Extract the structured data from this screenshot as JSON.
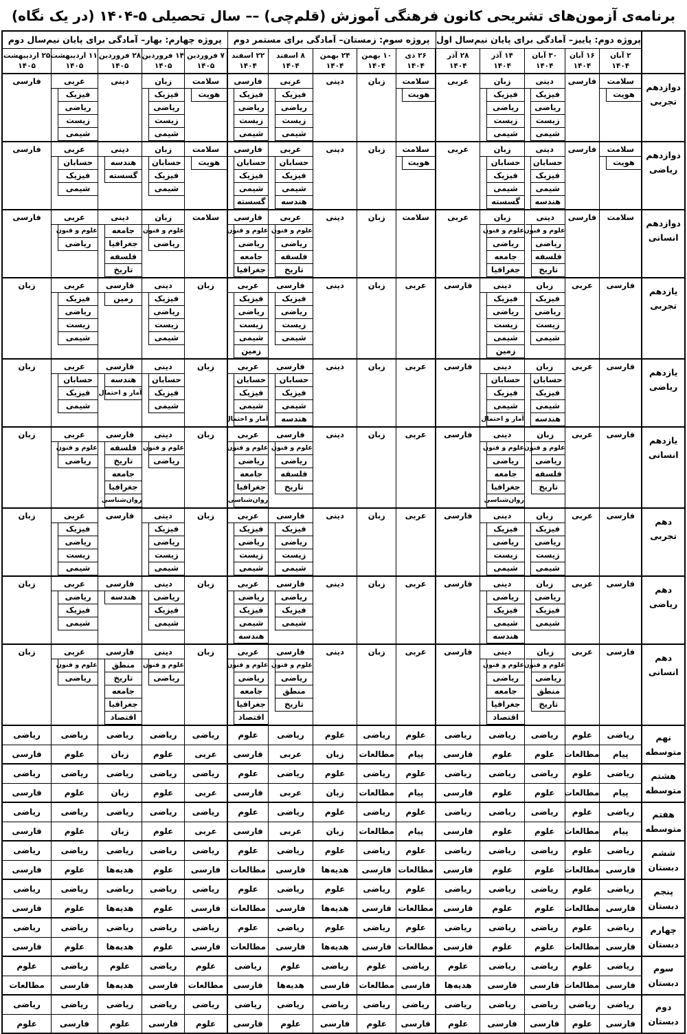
{
  "title": "برنامه‌ی آزمون‌های تشریحی کانون فرهنگی آموزش (قلم‌چی) –– سال تحصیلی ۵-۱۴۰۴ (در یک نگاه)",
  "colors": {
    "background": "#ffffff",
    "text": "#000000",
    "border": "#000000"
  },
  "projects": [
    {
      "label": "پروژه دوم: پاییز– آمادگی برای پایان نیم‌سال اول",
      "span": 5
    },
    {
      "label": "پروژه سوم: زمستان– آمادگی برای مستمر دوم",
      "span": 5
    },
    {
      "label": "پروژه چهارم: بهار– آمادگی برای پایان نیم‌سال دوم",
      "span": 5
    }
  ],
  "dates": [
    {
      "day": "۲ آبان",
      "year": "۱۴۰۴"
    },
    {
      "day": "۱۶ آبان",
      "year": "۱۴۰۴"
    },
    {
      "day": "۳۰ آبان",
      "year": "۱۴۰۴"
    },
    {
      "day": "۱۴ آذر",
      "year": "۱۴۰۴"
    },
    {
      "day": "۲۸ آذر",
      "year": "۱۴۰۴"
    },
    {
      "day": "۲۶ دی",
      "year": "۱۴۰۴"
    },
    {
      "day": "۱۰ بهمن",
      "year": "۱۴۰۴"
    },
    {
      "day": "۲۴ بهمن",
      "year": "۱۴۰۴"
    },
    {
      "day": "۸ اسفند",
      "year": "۱۴۰۴"
    },
    {
      "day": "۲۲ اسفند",
      "year": "۱۴۰۴"
    },
    {
      "day": "۷ فروردین",
      "year": "۱۴۰۵"
    },
    {
      "day": "۱۴ فروردین",
      "year": "۱۴۰۵"
    },
    {
      "day": "۲۸ فروردین",
      "year": "۱۴۰۵"
    },
    {
      "day": "۱۱ اردیبهشت",
      "year": "۱۴۰۵"
    },
    {
      "day": "۲۵ اردیبهشت",
      "year": "۱۴۰۵"
    }
  ],
  "grades": [
    {
      "line1": "دوازدهم",
      "line2": "تجربی",
      "style": "boxed",
      "cells": [
        [
          "سلامت",
          "هویت"
        ],
        [
          "فارسی"
        ],
        [
          "دینی",
          "فیزیک",
          "ریاضی",
          "زیست",
          "شیمی"
        ],
        [
          "زبان",
          "فیزیک",
          "ریاضی",
          "زیست",
          "شیمی"
        ],
        [
          "عربی"
        ],
        [
          "سلامت",
          "هویت"
        ],
        [
          "زبان"
        ],
        [
          "دینی"
        ],
        [
          "عربی",
          "فیزیک",
          "ریاضی",
          "زیست",
          "شیمی"
        ],
        [
          "فارسی",
          "فیزیک",
          "ریاضی",
          "زیست",
          "شیمی"
        ],
        [
          "سلامت",
          "هویت"
        ],
        [
          "زبان",
          "فیزیک",
          "ریاضی",
          "زیست",
          "شیمی"
        ],
        [
          "دینی"
        ],
        [
          "عربی",
          "فیزیک",
          "ریاضی",
          "زیست",
          "شیمی"
        ],
        [
          "فارسی"
        ]
      ]
    },
    {
      "line1": "دوازدهم",
      "line2": "ریاضی",
      "style": "boxed",
      "cells": [
        [
          "سلامت",
          "هویت"
        ],
        [
          "فارسی"
        ],
        [
          "دینی",
          "حسابان",
          "فیزیک",
          "شیمی",
          "هندسه"
        ],
        [
          "زبان",
          "حسابان",
          "فیزیک",
          "شیمی",
          "گسسته"
        ],
        [
          "عربی"
        ],
        [
          "سلامت",
          "هویت"
        ],
        [
          "زبان"
        ],
        [
          "دینی"
        ],
        [
          "عربی",
          "حسابان",
          "فیزیک",
          "شیمی",
          "هندسه"
        ],
        [
          "فارسی",
          "حسابان",
          "فیزیک",
          "شیمی",
          "گسسته"
        ],
        [
          "سلامت",
          "هویت"
        ],
        [
          "زبان",
          "حسابان",
          "فیزیک",
          "شیمی"
        ],
        [
          "دینی",
          "هندسه",
          "گسسته"
        ],
        [
          "عربی",
          "حسابان",
          "فیزیک",
          "شیمی"
        ],
        [
          "فارسی"
        ]
      ]
    },
    {
      "line1": "دوازدهم",
      "line2": "انسانی",
      "style": "boxed",
      "cells": [
        [
          "سلامت"
        ],
        [
          "فارسی"
        ],
        [
          "دینی",
          "علوم و فنون",
          "ریاضی",
          "فلسفه",
          "تاریخ"
        ],
        [
          "زبان",
          "علوم و فنون",
          "ریاضی",
          "جامعه",
          "جغرافیا"
        ],
        [
          "عربی"
        ],
        [
          "سلامت"
        ],
        [
          "زبان"
        ],
        [
          "دینی"
        ],
        [
          "عربی",
          "علوم و فنون",
          "ریاضی",
          "فلسفه",
          "تاریخ"
        ],
        [
          "فارسی",
          "علوم و فنون",
          "ریاضی",
          "جامعه",
          "جغرافیا"
        ],
        [
          "سلامت"
        ],
        [
          "زبان",
          "علوم و فنون",
          "ریاضی"
        ],
        [
          "دینی",
          "جامعه",
          "جغرافیا",
          "فلسفه",
          "تاریخ"
        ],
        [
          "عربی",
          "علوم و فنون",
          "ریاضی"
        ],
        [
          "فارسی"
        ]
      ]
    },
    {
      "line1": "یازدهم",
      "line2": "تجربی",
      "style": "boxed",
      "cells": [
        [
          "فارسی"
        ],
        [
          "عربی"
        ],
        [
          "زبان",
          "فیزیک",
          "ریاضی",
          "زیست",
          "شیمی"
        ],
        [
          "دینی",
          "فیزیک",
          "ریاضی",
          "زیست",
          "شیمی",
          "زمین"
        ],
        [
          "فارسی"
        ],
        [
          "عربی"
        ],
        [
          "زبان"
        ],
        [
          "دینی"
        ],
        [
          "فارسی",
          "فیزیک",
          "ریاضی",
          "زیست",
          "شیمی"
        ],
        [
          "عربی",
          "فیزیک",
          "ریاضی",
          "زیست",
          "شیمی",
          "زمین"
        ],
        [
          "زبان"
        ],
        [
          "دینی",
          "فیزیک",
          "ریاضی",
          "زیست",
          "شیمی"
        ],
        [
          "فارسی",
          "زمین"
        ],
        [
          "عربی",
          "فیزیک",
          "ریاضی",
          "زیست",
          "شیمی"
        ],
        [
          "زبان"
        ]
      ]
    },
    {
      "line1": "یازدهم",
      "line2": "ریاضی",
      "style": "boxed",
      "cells": [
        [
          "فارسی"
        ],
        [
          "عربی"
        ],
        [
          "زبان",
          "حسابان",
          "فیزیک",
          "شیمی",
          "هندسه"
        ],
        [
          "دینی",
          "حسابان",
          "فیزیک",
          "شیمی",
          "آمار و احتمال"
        ],
        [
          "فارسی"
        ],
        [
          "عربی"
        ],
        [
          "زبان"
        ],
        [
          "دینی"
        ],
        [
          "فارسی",
          "حسابان",
          "فیزیک",
          "شیمی",
          "هندسه"
        ],
        [
          "عربی",
          "حسابان",
          "فیزیک",
          "شیمی",
          "آمار و احتمال"
        ],
        [
          "زبان"
        ],
        [
          "دینی",
          "حسابان",
          "فیزیک",
          "شیمی"
        ],
        [
          "فارسی",
          "هندسه",
          "آمار و احتمال"
        ],
        [
          "عربی",
          "حسابان",
          "فیزیک",
          "شیمی"
        ],
        [
          "زبان"
        ]
      ]
    },
    {
      "line1": "یازدهم",
      "line2": "انسانی",
      "style": "boxed",
      "cells": [
        [
          "فارسی"
        ],
        [
          "عربی"
        ],
        [
          "زبان",
          "علوم و فنون",
          "ریاضی",
          "فلسفه",
          "تاریخ"
        ],
        [
          "دینی",
          "علوم و فنون",
          "ریاضی",
          "جامعه",
          "جغرافیا",
          "روان‌شناسی"
        ],
        [
          "فارسی"
        ],
        [
          "عربی"
        ],
        [
          "زبان"
        ],
        [
          "دینی"
        ],
        [
          "فارسی",
          "علوم و فنون",
          "ریاضی",
          "فلسفه",
          "تاریخ"
        ],
        [
          "عربی",
          "علوم و فنون",
          "ریاضی",
          "جامعه",
          "جغرافیا",
          "روان‌شناسی"
        ],
        [
          "زبان"
        ],
        [
          "دینی",
          "علوم و فنون",
          "ریاضی"
        ],
        [
          "فارسی",
          "فلسفه",
          "تاریخ",
          "جامعه",
          "جغرافیا",
          "روان‌شناسی"
        ],
        [
          "عربی",
          "علوم و فنون",
          "ریاضی"
        ],
        [
          "زبان"
        ]
      ]
    },
    {
      "line1": "دهم",
      "line2": "تجربی",
      "style": "boxed",
      "cells": [
        [
          "فارسی"
        ],
        [
          "عربی"
        ],
        [
          "زبان",
          "فیزیک",
          "ریاضی",
          "زیست",
          "شیمی"
        ],
        [
          "دینی",
          "فیزیک",
          "ریاضی",
          "زیست",
          "شیمی"
        ],
        [
          "فارسی"
        ],
        [
          "عربی"
        ],
        [
          "زبان"
        ],
        [
          "دینی"
        ],
        [
          "فارسی",
          "فیزیک",
          "ریاضی",
          "زیست",
          "شیمی"
        ],
        [
          "عربی",
          "فیزیک",
          "ریاضی",
          "زیست",
          "شیمی"
        ],
        [
          "زبان"
        ],
        [
          "دینی",
          "فیزیک",
          "ریاضی",
          "زیست",
          "شیمی"
        ],
        [
          "فارسی"
        ],
        [
          "عربی",
          "فیزیک",
          "ریاضی",
          "زیست",
          "شیمی"
        ],
        [
          "زبان"
        ]
      ]
    },
    {
      "line1": "دهم",
      "line2": "ریاضی",
      "style": "boxed",
      "cells": [
        [
          "فارسی"
        ],
        [
          "عربی"
        ],
        [
          "زبان",
          "ریاضی",
          "فیزیک",
          "شیمی"
        ],
        [
          "دینی",
          "ریاضی",
          "فیزیک",
          "شیمی",
          "هندسه"
        ],
        [
          "فارسی"
        ],
        [
          "عربی"
        ],
        [
          "زبان"
        ],
        [
          "دینی"
        ],
        [
          "فارسی",
          "ریاضی",
          "فیزیک",
          "شیمی"
        ],
        [
          "عربی",
          "ریاضی",
          "فیزیک",
          "شیمی",
          "هندسه"
        ],
        [
          "زبان"
        ],
        [
          "دینی",
          "ریاضی",
          "فیزیک",
          "شیمی"
        ],
        [
          "فارسی",
          "هندسه"
        ],
        [
          "عربی",
          "ریاضی",
          "فیزیک",
          "شیمی"
        ],
        [
          "زبان"
        ]
      ]
    },
    {
      "line1": "دهم",
      "line2": "انسانی",
      "style": "boxed",
      "cells": [
        [
          "فارسی"
        ],
        [
          "عربی"
        ],
        [
          "زبان",
          "علوم و فنون",
          "ریاضی",
          "منطق",
          "تاریخ"
        ],
        [
          "دینی",
          "علوم و فنون",
          "ریاضی",
          "جامعه",
          "جغرافیا",
          "اقتصاد"
        ],
        [
          "فارسی"
        ],
        [
          "عربی"
        ],
        [
          "زبان"
        ],
        [
          "دینی"
        ],
        [
          "فارسی",
          "علوم و فنون",
          "ریاضی",
          "منطق",
          "تاریخ"
        ],
        [
          "عربی",
          "علوم و فنون",
          "ریاضی",
          "جامعه",
          "جغرافیا",
          "اقتصاد"
        ],
        [
          "زبان"
        ],
        [
          "دینی",
          "علوم و فنون",
          "ریاضی"
        ],
        [
          "فارسی",
          "منطق",
          "تاریخ",
          "جامعه",
          "جغرافیا",
          "اقتصاد"
        ],
        [
          "عربی",
          "علوم و فنون",
          "ریاضی"
        ],
        [
          "زبان"
        ]
      ]
    },
    {
      "line1": "نهم",
      "line2": "متوسطه",
      "style": "stacked",
      "cells": [
        [
          "ریاضی",
          "پیام"
        ],
        [
          "علوم",
          "مطالعات"
        ],
        [
          "ریاضی",
          "علوم"
        ],
        [
          "ریاضی",
          "علوم"
        ],
        [
          "ریاضی",
          "فارسی"
        ],
        [
          "علوم",
          "پیام"
        ],
        [
          "ریاضی",
          "مطالعات"
        ],
        [
          "علوم",
          "زبان"
        ],
        [
          "ریاضی",
          "عربی"
        ],
        [
          "علوم",
          "فارسی"
        ],
        [
          "ریاضی",
          "عربی"
        ],
        [
          "ریاضی",
          "علوم"
        ],
        [
          "ریاضی",
          "زبان"
        ],
        [
          "ریاضی",
          "علوم"
        ],
        [
          "ریاضی",
          "فارسی"
        ]
      ]
    },
    {
      "line1": "هشتم",
      "line2": "متوسطه",
      "style": "stacked",
      "cells": [
        [
          "ریاضی",
          "پیام"
        ],
        [
          "علوم",
          "مطالعات"
        ],
        [
          "ریاضی",
          "علوم"
        ],
        [
          "ریاضی",
          "علوم"
        ],
        [
          "ریاضی",
          "فارسی"
        ],
        [
          "علوم",
          "پیام"
        ],
        [
          "ریاضی",
          "مطالعات"
        ],
        [
          "علوم",
          "زبان"
        ],
        [
          "ریاضی",
          "عربی"
        ],
        [
          "علوم",
          "فارسی"
        ],
        [
          "ریاضی",
          "عربی"
        ],
        [
          "ریاضی",
          "علوم"
        ],
        [
          "ریاضی",
          "زبان"
        ],
        [
          "ریاضی",
          "علوم"
        ],
        [
          "ریاضی",
          "فارسی"
        ]
      ]
    },
    {
      "line1": "هفتم",
      "line2": "متوسطه",
      "style": "stacked",
      "cells": [
        [
          "ریاضی",
          "پیام"
        ],
        [
          "علوم",
          "مطالعات"
        ],
        [
          "ریاضی",
          "علوم"
        ],
        [
          "ریاضی",
          "علوم"
        ],
        [
          "ریاضی",
          "فارسی"
        ],
        [
          "علوم",
          "پیام"
        ],
        [
          "ریاضی",
          "مطالعات"
        ],
        [
          "علوم",
          "زبان"
        ],
        [
          "ریاضی",
          "عربی"
        ],
        [
          "علوم",
          "فارسی"
        ],
        [
          "ریاضی",
          "عربی"
        ],
        [
          "ریاضی",
          "علوم"
        ],
        [
          "ریاضی",
          "زبان"
        ],
        [
          "ریاضی",
          "علوم"
        ],
        [
          "ریاضی",
          "فارسی"
        ]
      ]
    },
    {
      "line1": "ششم",
      "line2": "دبستان",
      "style": "stacked",
      "cells": [
        [
          "ریاضی",
          "فارسی"
        ],
        [
          "علوم",
          "مطالعات"
        ],
        [
          "ریاضی",
          "علوم"
        ],
        [
          "ریاضی",
          "علوم"
        ],
        [
          "ریاضی",
          "فارسی"
        ],
        [
          "علوم",
          "مطالعات"
        ],
        [
          "ریاضی",
          "فارسی"
        ],
        [
          "علوم",
          "هدیه‌ها"
        ],
        [
          "ریاضی",
          "فارسی"
        ],
        [
          "علوم",
          "مطالعات"
        ],
        [
          "ریاضی",
          "فارسی"
        ],
        [
          "ریاضی",
          "علوم"
        ],
        [
          "ریاضی",
          "هدیه‌ها"
        ],
        [
          "ریاضی",
          "علوم"
        ],
        [
          "ریاضی",
          "فارسی"
        ]
      ]
    },
    {
      "line1": "پنجم",
      "line2": "دبستان",
      "style": "stacked",
      "cells": [
        [
          "ریاضی",
          "فارسی"
        ],
        [
          "علوم",
          "مطالعات"
        ],
        [
          "ریاضی",
          "علوم"
        ],
        [
          "ریاضی",
          "علوم"
        ],
        [
          "ریاضی",
          "فارسی"
        ],
        [
          "علوم",
          "مطالعات"
        ],
        [
          "ریاضی",
          "فارسی"
        ],
        [
          "علوم",
          "هدیه‌ها"
        ],
        [
          "ریاضی",
          "فارسی"
        ],
        [
          "علوم",
          "مطالعات"
        ],
        [
          "ریاضی",
          "فارسی"
        ],
        [
          "ریاضی",
          "علوم"
        ],
        [
          "ریاضی",
          "هدیه‌ها"
        ],
        [
          "ریاضی",
          "علوم"
        ],
        [
          "ریاضی",
          "فارسی"
        ]
      ]
    },
    {
      "line1": "چهارم",
      "line2": "دبستان",
      "style": "stacked",
      "cells": [
        [
          "ریاضی",
          "فارسی"
        ],
        [
          "علوم",
          "مطالعات"
        ],
        [
          "ریاضی",
          "علوم"
        ],
        [
          "ریاضی",
          "علوم"
        ],
        [
          "ریاضی",
          "فارسی"
        ],
        [
          "علوم",
          "مطالعات"
        ],
        [
          "ریاضی",
          "فارسی"
        ],
        [
          "علوم",
          "هدیه‌ها"
        ],
        [
          "ریاضی",
          "فارسی"
        ],
        [
          "علوم",
          "مطالعات"
        ],
        [
          "ریاضی",
          "فارسی"
        ],
        [
          "ریاضی",
          "علوم"
        ],
        [
          "ریاضی",
          "هدیه‌ها"
        ],
        [
          "ریاضی",
          "علوم"
        ],
        [
          "ریاضی",
          "فارسی"
        ]
      ]
    },
    {
      "line1": "سوم",
      "line2": "دبستان",
      "style": "stacked",
      "cells": [
        [
          "ریاضی",
          "فارسی"
        ],
        [
          "علوم",
          "مطالعات"
        ],
        [
          "ریاضی",
          "فارسی"
        ],
        [
          "ریاضی",
          "فارسی"
        ],
        [
          "علوم",
          "هدیه‌ها"
        ],
        [
          "ریاضی",
          "فارسی"
        ],
        [
          "علوم",
          "مطالعات"
        ],
        [
          "ریاضی",
          "فارسی"
        ],
        [
          "علوم",
          "هدیه‌ها"
        ],
        [
          "ریاضی",
          "فارسی"
        ],
        [
          "علوم",
          "مطالعات"
        ],
        [
          "ریاضی",
          "فارسی"
        ],
        [
          "علوم",
          "هدیه‌ها"
        ],
        [
          "ریاضی",
          "فارسی"
        ],
        [
          "علوم",
          "مطالعات"
        ]
      ]
    },
    {
      "line1": "دوم",
      "line2": "دبستان",
      "style": "stacked",
      "cells": [
        [
          "ریاضی",
          "فارسی"
        ],
        [
          "ریاضی",
          "علوم"
        ],
        [
          "ریاضی",
          "فارسی"
        ],
        [
          "ریاضی",
          "فارسی"
        ],
        [
          "ریاضی",
          "علوم"
        ],
        [
          "ریاضی",
          "فارسی"
        ],
        [
          "ریاضی",
          "علوم"
        ],
        [
          "ریاضی",
          "فارسی"
        ],
        [
          "ریاضی",
          "علوم"
        ],
        [
          "ریاضی",
          "فارسی"
        ],
        [
          "ریاضی",
          "علوم"
        ],
        [
          "ریاضی",
          "فارسی"
        ],
        [
          "ریاضی",
          "علوم"
        ],
        [
          "ریاضی",
          "فارسی"
        ],
        [
          "ریاضی",
          "علوم"
        ]
      ]
    }
  ]
}
